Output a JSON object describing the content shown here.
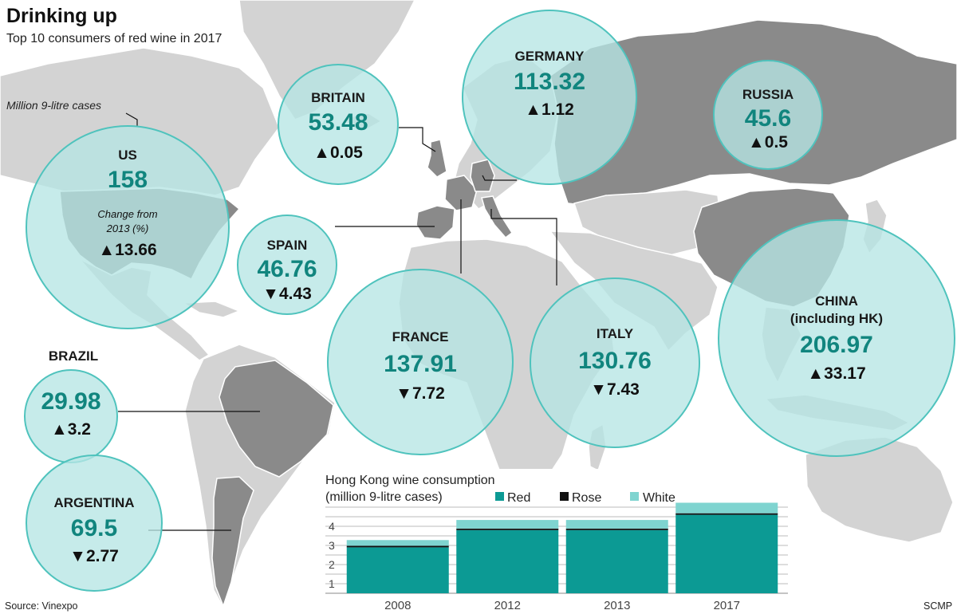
{
  "title": "Drinking up",
  "subtitle": "Top 10 consumers of red wine in 2017",
  "unit_note": "Million 9-litre cases",
  "change_note": "Change from 2013 (%)",
  "source": "Source: Vinexpo",
  "credit": "SCMP",
  "colors": {
    "bubble": "#b6e6e4",
    "bubble_stroke": "#4fc3bd",
    "value_teal": "#11857e",
    "red_bar": "#0c9a94",
    "white_bar": "#7fd4d0",
    "rose_line": "#111111",
    "map_light": "#d3d3d3",
    "map_dark": "#8a8a8a"
  },
  "chart_data": [
    {
      "type": "bubble-map",
      "value_unit": "Million 9-litre cases",
      "change_unit": "Change from 2013 (%)",
      "countries": [
        {
          "name": "US",
          "value": "158",
          "change": "13.66",
          "direction": "up"
        },
        {
          "name": "BRITAIN",
          "value": "53.48",
          "change": "0.05",
          "direction": "up"
        },
        {
          "name": "GERMANY",
          "value": "113.32",
          "change": "1.12",
          "direction": "up"
        },
        {
          "name": "RUSSIA",
          "value": "45.6",
          "change": "0.5",
          "direction": "up"
        },
        {
          "name": "SPAIN",
          "value": "46.76",
          "change": "4.43",
          "direction": "down"
        },
        {
          "name": "FRANCE",
          "value": "137.91",
          "change": "7.72",
          "direction": "down"
        },
        {
          "name": "ITALY",
          "value": "130.76",
          "change": "7.43",
          "direction": "down"
        },
        {
          "name": "CHINA",
          "name_line2": "(including HK)",
          "value": "206.97",
          "change": "33.17",
          "direction": "up"
        },
        {
          "name": "BRAZIL",
          "value": "29.98",
          "change": "3.2",
          "direction": "up"
        },
        {
          "name": "ARGENTINA",
          "value": "69.5",
          "change": "2.77",
          "direction": "down"
        }
      ]
    },
    {
      "type": "bar",
      "stacked": true,
      "title": "Hong Kong wine consumption",
      "title_line2": "(million 9-litre cases)",
      "categories": [
        "2008",
        "2012",
        "2013",
        "2017"
      ],
      "series": [
        {
          "name": "Red",
          "values": [
            2.4,
            3.3,
            3.3,
            4.1
          ]
        },
        {
          "name": "Rose",
          "values": [
            0.08,
            0.08,
            0.08,
            0.08
          ]
        },
        {
          "name": "White",
          "values": [
            0.3,
            0.45,
            0.45,
            0.55
          ]
        }
      ],
      "ylim": [
        0,
        4.5
      ],
      "yticks": [
        "1",
        "2",
        "3",
        "4"
      ]
    }
  ]
}
